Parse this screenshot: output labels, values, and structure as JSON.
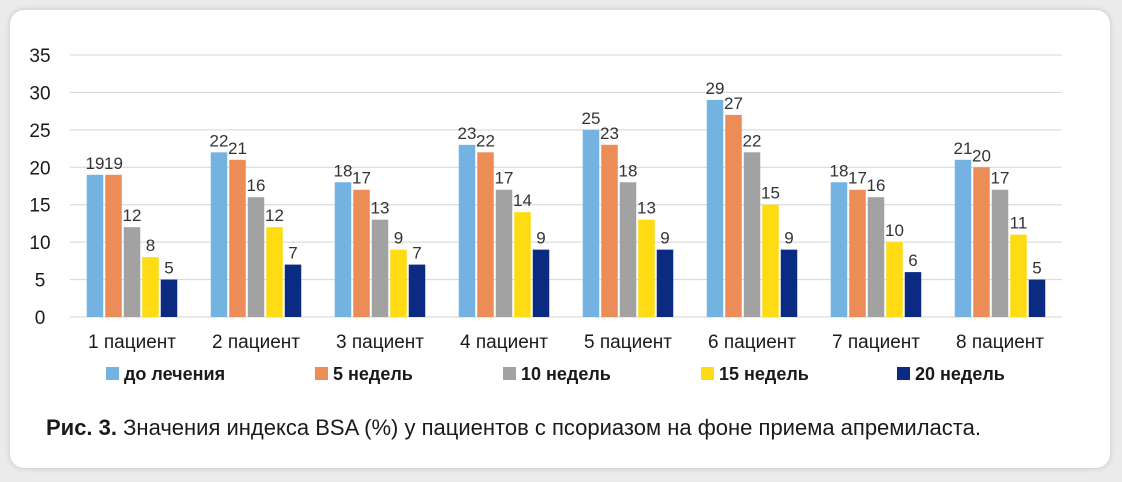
{
  "chart_data": {
    "type": "bar",
    "categories": [
      "1 пациент",
      "2 пациент",
      "3 пациент",
      "4 пациент",
      "5 пациент",
      "6 пациент",
      "7 пациент",
      "8 пациент"
    ],
    "series": [
      {
        "name": "до лечения",
        "color": "#74b2e2",
        "values": [
          19,
          22,
          18,
          23,
          25,
          29,
          18,
          21
        ]
      },
      {
        "name": "5 недель",
        "color": "#ec8c57",
        "values": [
          19,
          21,
          17,
          22,
          23,
          27,
          17,
          20
        ]
      },
      {
        "name": "10 недель",
        "color": "#a2a2a2",
        "values": [
          12,
          16,
          13,
          17,
          18,
          22,
          16,
          17
        ]
      },
      {
        "name": "15 недель",
        "color": "#fedb13",
        "values": [
          8,
          12,
          9,
          14,
          13,
          15,
          10,
          11
        ]
      },
      {
        "name": "20 недель",
        "color": "#0b2a82",
        "values": [
          5,
          7,
          7,
          9,
          9,
          9,
          6,
          5
        ]
      }
    ],
    "ylim": [
      0,
      35
    ],
    "yticks": [
      0,
      5,
      10,
      15,
      20,
      25,
      30,
      35
    ],
    "grid": true,
    "legend": "bottom"
  },
  "caption": {
    "label": "Рис. 3.",
    "text": "Значения индекса BSA (%) у пациентов с псориазом на фоне приема апремиласта."
  }
}
